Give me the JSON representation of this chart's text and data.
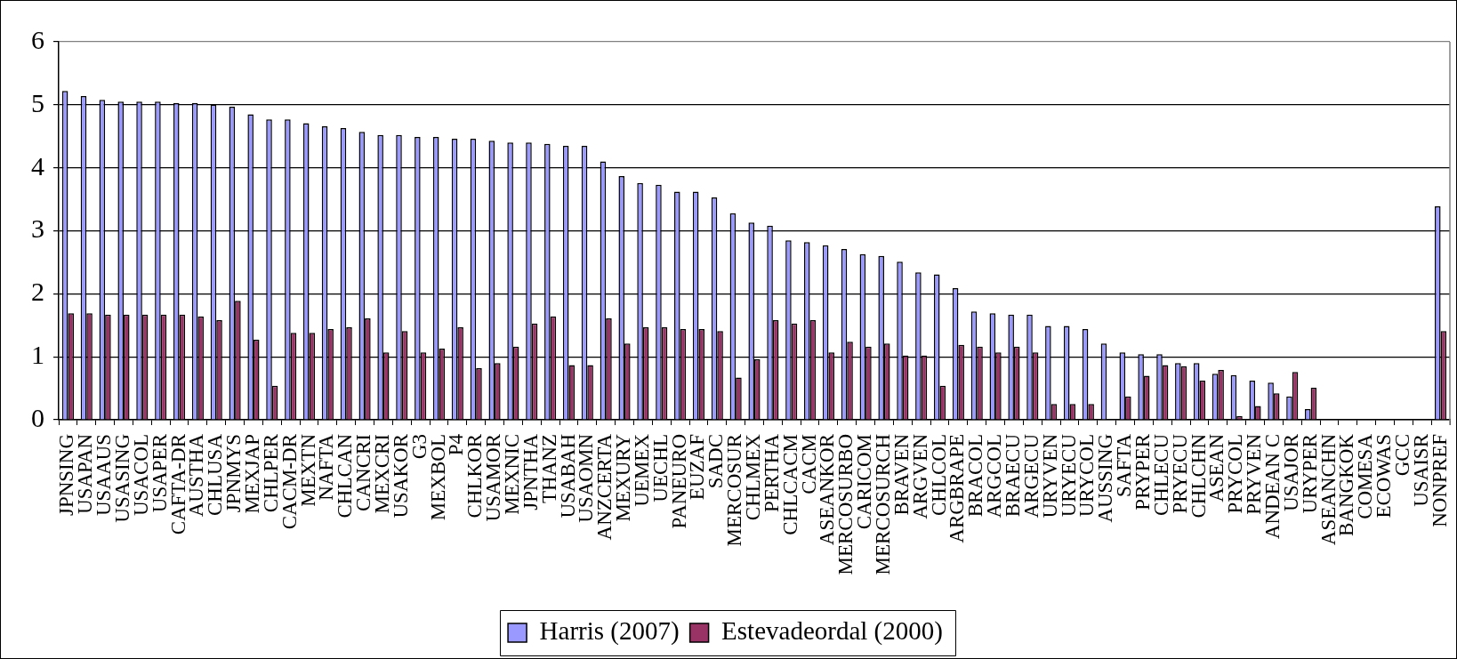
{
  "chart_data": {
    "type": "bar",
    "categories": [
      "JPNSING",
      "USAPAN",
      "USAAUS",
      "USASING",
      "USACOL",
      "USAPER",
      "CAFTA-DR",
      "AUSTHA",
      "CHLUSA",
      "JPNMYS",
      "MEXJAP",
      "CHLPER",
      "CACM-DR",
      "MEXTN",
      "NAFTA",
      "CHLCAN",
      "CANCRI",
      "MEXCRI",
      "USAKOR",
      "G3",
      "MEXBOL",
      "P4",
      "CHLKOR",
      "USAMOR",
      "MEXNIC",
      "JPNTHA",
      "THANZ",
      "USABAH",
      "USAOMN",
      "ANZCERTA",
      "MEXURY",
      "UEMEX",
      "UECHL",
      "PANEURO",
      "EUZAF",
      "SADC",
      "MERCOSUR",
      "CHLMEX",
      "PERTHA",
      "CHLCACM",
      "CACM",
      "ASEANKOR",
      "MERCOSURBO",
      "CARICOM",
      "MERCOSURCH",
      "BRAVEN",
      "ARGVEN",
      "CHLCOL",
      "ARGBRAPE",
      "BRACOL",
      "ARGCOL",
      "BRAECU",
      "ARGECU",
      "URYVEN",
      "URYECU",
      "URYCOL",
      "AUSSING",
      "SAFTA",
      "PRYPER",
      "CHLECU",
      "PRYECU",
      "CHLCHN",
      "ASEAN",
      "PRYCOL",
      "PRYVEN",
      "ANDEAN C",
      "USAJOR",
      "URYPER",
      "ASEANCHN",
      "BANGKOK",
      "COMESA",
      "ECOWAS",
      "GCC",
      "USAISR",
      "NONPREF"
    ],
    "series": [
      {
        "name": "Harris (2007)",
        "color": "#9999ff",
        "values": [
          5.22,
          5.14,
          5.08,
          5.05,
          5.05,
          5.05,
          5.03,
          5.03,
          5.0,
          4.97,
          4.85,
          4.77,
          4.77,
          4.71,
          4.66,
          4.63,
          4.57,
          4.52,
          4.52,
          4.49,
          4.49,
          4.46,
          4.46,
          4.43,
          4.4,
          4.4,
          4.38,
          4.35,
          4.35,
          4.1,
          3.87,
          3.76,
          3.73,
          3.62,
          3.62,
          3.53,
          3.28,
          3.13,
          3.08,
          2.85,
          2.82,
          2.77,
          2.71,
          2.63,
          2.6,
          2.51,
          2.34,
          2.31,
          2.09,
          1.72,
          1.69,
          1.67,
          1.67,
          1.49,
          1.49,
          1.44,
          1.21,
          1.07,
          1.04,
          1.04,
          0.9,
          0.9,
          0.73,
          0.71,
          0.62,
          0.59,
          0.37,
          0.17,
          null,
          null,
          null,
          null,
          null,
          null,
          3.39
        ]
      },
      {
        "name": "Estevadeordal (2000)",
        "color": "#993366",
        "values": [
          1.69,
          1.69,
          1.67,
          1.67,
          1.67,
          1.67,
          1.67,
          1.64,
          1.58,
          1.89,
          1.27,
          0.54,
          1.38,
          1.38,
          1.44,
          1.47,
          1.61,
          1.07,
          1.41,
          1.07,
          1.13,
          1.47,
          0.82,
          0.9,
          1.16,
          1.53,
          1.64,
          0.87,
          0.87,
          1.61,
          1.21,
          1.47,
          1.47,
          1.44,
          1.44,
          1.41,
          0.67,
          0.96,
          1.58,
          1.53,
          1.58,
          1.07,
          1.24,
          1.16,
          1.21,
          1.02,
          1.02,
          0.54,
          1.19,
          1.16,
          1.07,
          1.16,
          1.07,
          0.25,
          0.25,
          0.25,
          null,
          0.37,
          0.7,
          0.87,
          0.85,
          0.62,
          0.79,
          0.06,
          0.22,
          0.42,
          0.76,
          0.51,
          null,
          null,
          null,
          null,
          null,
          null,
          1.41
        ]
      }
    ],
    "ylim": [
      0,
      6
    ],
    "yticks": [
      0,
      1,
      2,
      3,
      4,
      5,
      6
    ],
    "grid": "y",
    "legend": "bottom"
  }
}
